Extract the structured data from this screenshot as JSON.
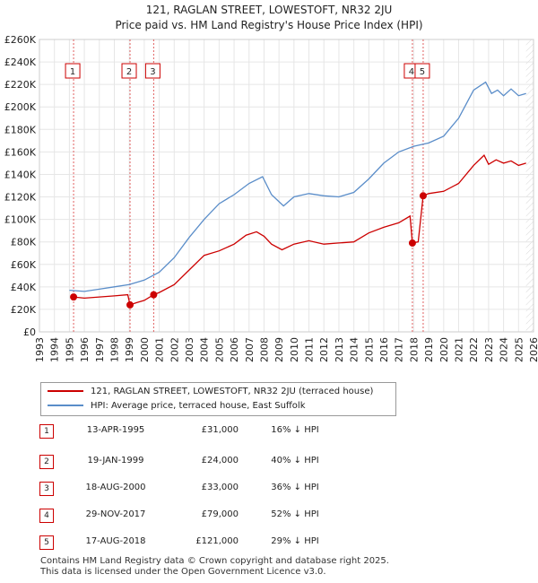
{
  "chart_data": {
    "type": "line",
    "title": "121, RAGLAN STREET, LOWESTOFT, NR32 2JU",
    "subtitle": "Price paid vs. HM Land Registry's House Price Index (HPI)",
    "xlim": [
      1993,
      2026
    ],
    "ylim": [
      0,
      260000
    ],
    "x_ticks": [
      "1993",
      "1994",
      "1995",
      "1996",
      "1997",
      "1998",
      "1999",
      "2000",
      "2001",
      "2002",
      "2003",
      "2004",
      "2005",
      "2006",
      "2007",
      "2008",
      "2009",
      "2010",
      "2011",
      "2012",
      "2013",
      "2014",
      "2015",
      "2016",
      "2017",
      "2018",
      "2019",
      "2020",
      "2021",
      "2022",
      "2023",
      "2024",
      "2025",
      "2026"
    ],
    "y_ticks": [
      {
        "value": 0,
        "label": "£0"
      },
      {
        "value": 20000,
        "label": "£20K"
      },
      {
        "value": 40000,
        "label": "£40K"
      },
      {
        "value": 60000,
        "label": "£60K"
      },
      {
        "value": 80000,
        "label": "£80K"
      },
      {
        "value": 100000,
        "label": "£100K"
      },
      {
        "value": 120000,
        "label": "£120K"
      },
      {
        "value": 140000,
        "label": "£140K"
      },
      {
        "value": 160000,
        "label": "£160K"
      },
      {
        "value": 180000,
        "label": "£180K"
      },
      {
        "value": 200000,
        "label": "£200K"
      },
      {
        "value": 220000,
        "label": "£220K"
      },
      {
        "value": 240000,
        "label": "£240K"
      },
      {
        "value": 260000,
        "label": "£260K"
      }
    ],
    "series": [
      {
        "name": "121, RAGLAN STREET, LOWESTOFT, NR32 2JU (terraced house)",
        "color": "#cc0000",
        "x": [
          1995.28,
          1996.0,
          1997.0,
          1998.0,
          1998.9,
          1999.05,
          1999.5,
          2000.0,
          2000.63,
          2001.0,
          2002.0,
          2003.0,
          2004.0,
          2005.0,
          2006.0,
          2006.8,
          2007.5,
          2008.0,
          2008.5,
          2009.2,
          2010.0,
          2011.0,
          2012.0,
          2013.0,
          2014.0,
          2015.0,
          2016.0,
          2017.0,
          2017.75,
          2017.91,
          2018.3,
          2018.63,
          2019.0,
          2020.0,
          2021.0,
          2022.0,
          2022.7,
          2023.0,
          2023.5,
          2024.0,
          2024.5,
          2025.0,
          2025.5
        ],
        "values": [
          31000,
          30000,
          31000,
          32000,
          33000,
          24000,
          26000,
          28000,
          33000,
          35000,
          42000,
          55000,
          68000,
          72000,
          78000,
          86000,
          89000,
          85000,
          78000,
          73000,
          78000,
          81000,
          78000,
          79000,
          80000,
          88000,
          93000,
          97000,
          103000,
          79000,
          80000,
          121000,
          123000,
          125000,
          132000,
          148000,
          157000,
          149000,
          153000,
          150000,
          152000,
          148000,
          150000
        ]
      },
      {
        "name": "HPI: Average price, terraced house, East Suffolk",
        "color": "#5a8dc9",
        "x": [
          1995.0,
          1996.0,
          1997.0,
          1998.0,
          1999.0,
          2000.0,
          2001.0,
          2002.0,
          2003.0,
          2004.0,
          2005.0,
          2006.0,
          2007.0,
          2007.9,
          2008.5,
          2009.3,
          2010.0,
          2011.0,
          2012.0,
          2013.0,
          2014.0,
          2015.0,
          2016.0,
          2017.0,
          2018.0,
          2019.0,
          2020.0,
          2021.0,
          2022.0,
          2022.8,
          2023.2,
          2023.6,
          2024.0,
          2024.5,
          2025.0,
          2025.5
        ],
        "values": [
          37000,
          36000,
          38000,
          40000,
          42000,
          46000,
          53000,
          66000,
          84000,
          100000,
          114000,
          122000,
          132000,
          138000,
          122000,
          112000,
          120000,
          123000,
          121000,
          120000,
          124000,
          136000,
          150000,
          160000,
          165000,
          168000,
          174000,
          190000,
          215000,
          222000,
          212000,
          215000,
          210000,
          216000,
          210000,
          212000
        ]
      }
    ],
    "sale_markers": [
      {
        "label": "1",
        "x": 1995.28,
        "value": 31000
      },
      {
        "label": "2",
        "x": 1999.05,
        "value": 24000
      },
      {
        "label": "3",
        "x": 2000.63,
        "value": 33000
      },
      {
        "label": "4",
        "x": 2017.91,
        "value": 79000
      },
      {
        "label": "5",
        "x": 2018.63,
        "value": 121000
      }
    ],
    "future_start": 2025.5
  },
  "legend": {
    "property_label": "121, RAGLAN STREET, LOWESTOFT, NR32 2JU (terraced house)",
    "hpi_label": "HPI: Average price, terraced house, East Suffolk"
  },
  "transactions": [
    {
      "num": "1",
      "date": "13-APR-1995",
      "price": "£31,000",
      "hpi": "16% ↓ HPI"
    },
    {
      "num": "2",
      "date": "19-JAN-1999",
      "price": "£24,000",
      "hpi": "40% ↓ HPI"
    },
    {
      "num": "3",
      "date": "18-AUG-2000",
      "price": "£33,000",
      "hpi": "36% ↓ HPI"
    },
    {
      "num": "4",
      "date": "29-NOV-2017",
      "price": "£79,000",
      "hpi": "52% ↓ HPI"
    },
    {
      "num": "5",
      "date": "17-AUG-2018",
      "price": "£121,000",
      "hpi": "29% ↓ HPI"
    }
  ],
  "footer": {
    "line1": "Contains HM Land Registry data © Crown copyright and database right 2025.",
    "line2": "This data is licensed under the Open Government Licence v3.0."
  }
}
